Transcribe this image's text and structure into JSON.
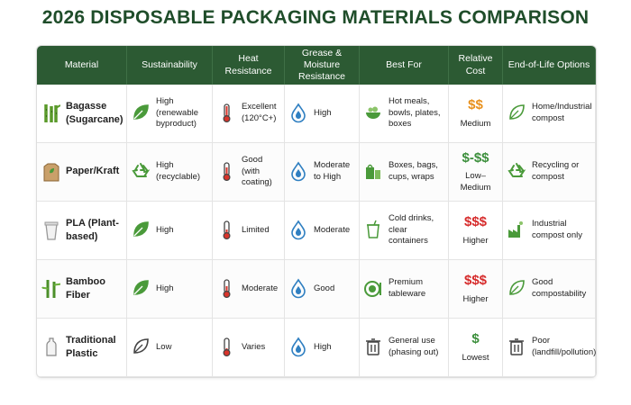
{
  "title": "2026 DISPOSABLE PACKAGING MATERIALS COMPARISON",
  "table": {
    "headers": [
      "Material",
      "Sustainability",
      "Heat Resistance",
      "Grease & Moisture Resistance",
      "Best For",
      "Relative Cost",
      "End-of-Life Options"
    ],
    "rows": [
      {
        "material": "Bagasse (Sugarcane)",
        "sustainability": "High (renewable byproduct)",
        "heat": "Excellent (120°C+)",
        "grease": "High",
        "best_for": "Hot meals, bowls, plates, boxes",
        "cost": "$$",
        "cost_color": "#e8901c",
        "cost_label": "Medium",
        "end_of_life": "Home/Industrial compost"
      },
      {
        "material": "Paper/Kraft",
        "sustainability": "High (recyclable)",
        "heat": "Good (with coating)",
        "grease": "Moderate to High",
        "best_for": "Boxes, bags, cups, wraps",
        "cost": "$-$$",
        "cost_color": "#3c8f3c",
        "cost_label": "Low–Medium",
        "end_of_life": "Recycling or compost"
      },
      {
        "material": "PLA (Plant-based)",
        "sustainability": "High",
        "heat": "Limited",
        "grease": "Moderate",
        "best_for": "Cold drinks, clear containers",
        "cost": "$$$",
        "cost_color": "#d62b2b",
        "cost_label": "Higher",
        "end_of_life": "Industrial compost only"
      },
      {
        "material": "Bamboo Fiber",
        "sustainability": "High",
        "heat": "Moderate",
        "grease": "Good",
        "best_for": "Premium tableware",
        "cost": "$$$",
        "cost_color": "#d62b2b",
        "cost_label": "Higher",
        "end_of_life": "Good compostability"
      },
      {
        "material": "Traditional Plastic",
        "sustainability": "Low",
        "heat": "Varies",
        "grease": "High",
        "best_for": "General use (phasing out)",
        "cost": "$",
        "cost_color": "#3c8f3c",
        "cost_label": "Lowest",
        "end_of_life": "Poor (landfill/pollution)"
      }
    ]
  }
}
